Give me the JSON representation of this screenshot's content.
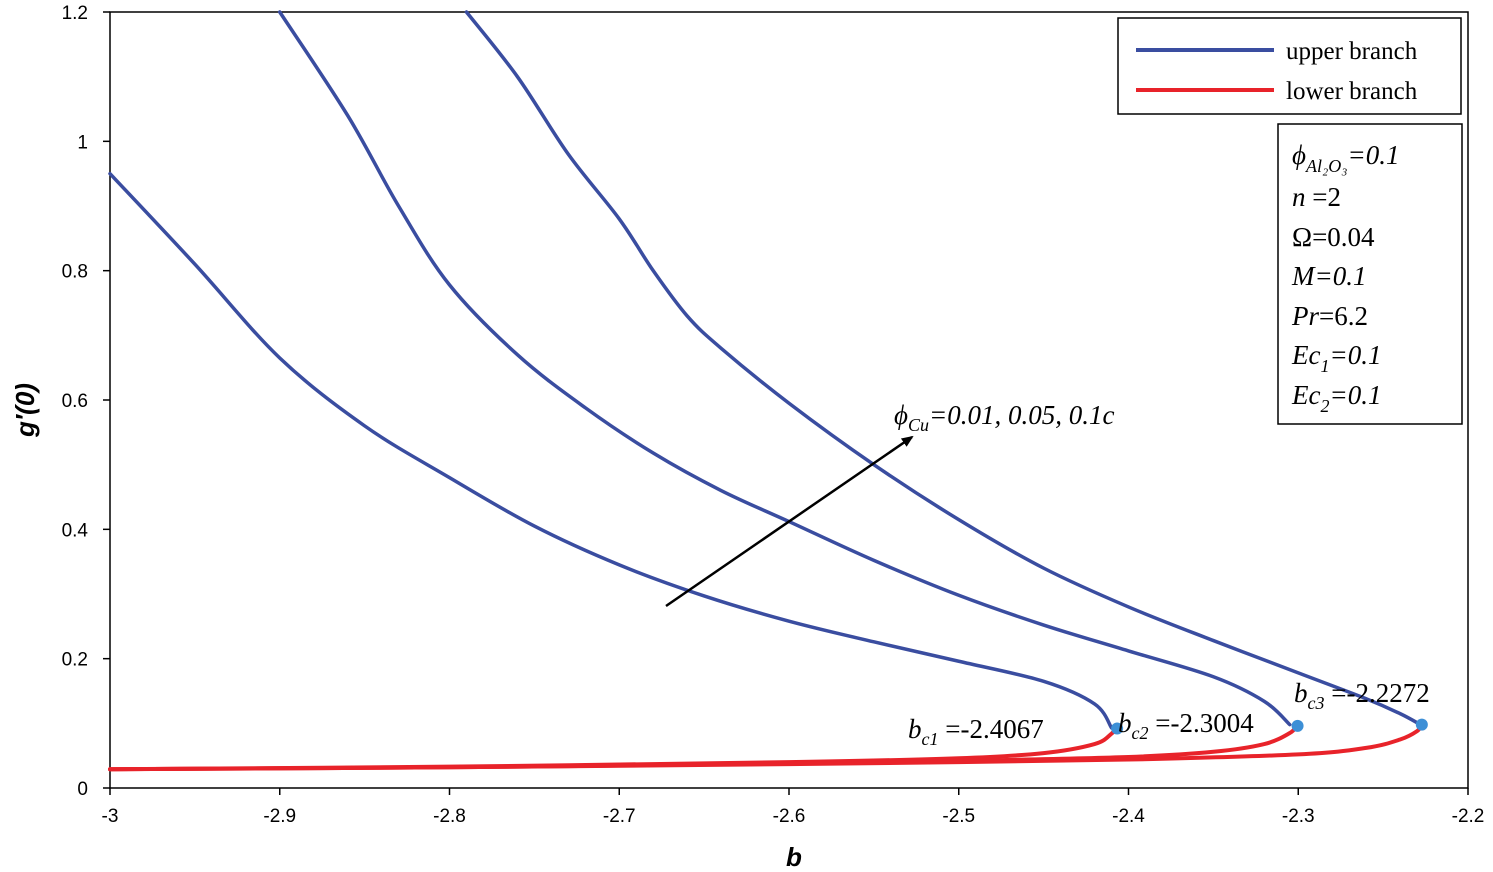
{
  "chart_data": {
    "type": "line",
    "xlabel": "b",
    "ylabel": "g′(0)",
    "xlim": [
      -3,
      -2.2
    ],
    "ylim": [
      0,
      1.2
    ],
    "x_ticks": [
      "-3",
      "-2.9",
      "-2.8",
      "-2.7",
      "-2.6",
      "-2.5",
      "-2.4",
      "-2.3",
      "-2.2"
    ],
    "y_ticks": [
      "0",
      "0.2",
      "0.4",
      "0.6",
      "0.8",
      "1",
      "1.2"
    ],
    "x_tick_values": [
      -3,
      -2.9,
      -2.8,
      -2.7,
      -2.6,
      -2.5,
      -2.4,
      -2.3,
      -2.2
    ],
    "y_tick_values": [
      0,
      0.2,
      0.4,
      0.6,
      0.8,
      1.0,
      1.2
    ],
    "legend": {
      "placement": "top-right",
      "entries": [
        {
          "label": "upper branch",
          "color": "#3a4da0"
        },
        {
          "label": "lower branch",
          "color": "#e8232a"
        }
      ]
    },
    "parameters": {
      "phi_al": {
        "symbol": "ϕ",
        "sub": "Al₂O₃",
        "value": "=0.1"
      },
      "n": {
        "symbol": "n",
        "value": " =2"
      },
      "omega": {
        "label": "Ω=0.04"
      },
      "m": {
        "symbol": "M",
        "value": "=0.1"
      },
      "pr": {
        "symbol": "Pr",
        "value": "=6.2"
      },
      "ec1": {
        "symbol": "Ec",
        "sub": "1",
        "value": "=0.1"
      },
      "ec2": {
        "symbol": "Ec",
        "sub": "2",
        "value": "=0.1"
      }
    },
    "arrow_annotation": {
      "symbol": "ϕ",
      "sub": "Cu",
      "value": "=0.01, 0.05, 0.1c"
    },
    "critical_points": [
      {
        "name": "b",
        "sub": "c1",
        "value": " =-2.4067",
        "x": -2.4067,
        "y": 0.092
      },
      {
        "name": "b",
        "sub": "c2",
        "value": " =-2.3004",
        "x": -2.3004,
        "y": 0.096
      },
      {
        "name": "b",
        "sub": "c3",
        "value": " =-2.2272",
        "x": -2.2272,
        "y": 0.098
      }
    ],
    "series": [
      {
        "name": "upper branch (phi_Cu=0.01)",
        "branch": "upper",
        "x": [
          -3.0,
          -2.95,
          -2.9,
          -2.85,
          -2.8,
          -2.75,
          -2.7,
          -2.65,
          -2.6,
          -2.55,
          -2.5,
          -2.45,
          -2.42,
          -2.41
        ],
        "y": [
          0.95,
          0.81,
          0.665,
          0.56,
          0.48,
          0.405,
          0.345,
          0.297,
          0.258,
          0.226,
          0.196,
          0.165,
          0.13,
          0.093
        ]
      },
      {
        "name": "upper branch (phi_Cu=0.05)",
        "branch": "upper",
        "x": [
          -2.9,
          -2.86,
          -2.83,
          -2.8,
          -2.76,
          -2.72,
          -2.68,
          -2.64,
          -2.6,
          -2.55,
          -2.5,
          -2.45,
          -2.4,
          -2.35,
          -2.32,
          -2.305
        ],
        "y": [
          1.2,
          1.04,
          0.9,
          0.778,
          0.67,
          0.588,
          0.518,
          0.46,
          0.412,
          0.352,
          0.298,
          0.252,
          0.212,
          0.172,
          0.134,
          0.098
        ]
      },
      {
        "name": "upper branch (phi_Cu=0.1)",
        "branch": "upper",
        "x": [
          -2.79,
          -2.76,
          -2.73,
          -2.7,
          -2.68,
          -2.66,
          -2.64,
          -2.6,
          -2.55,
          -2.5,
          -2.45,
          -2.4,
          -2.35,
          -2.3,
          -2.26,
          -2.24,
          -2.228
        ],
        "y": [
          1.2,
          1.1,
          0.98,
          0.88,
          0.8,
          0.73,
          0.68,
          0.595,
          0.5,
          0.415,
          0.34,
          0.28,
          0.228,
          0.178,
          0.138,
          0.115,
          0.098
        ]
      },
      {
        "name": "lower branch (phi_Cu=0.01)",
        "branch": "lower",
        "x": [
          -3.0,
          -2.8,
          -2.6,
          -2.5,
          -2.45,
          -2.42,
          -2.41,
          -2.408
        ],
        "y": [
          0.029,
          0.033,
          0.04,
          0.046,
          0.054,
          0.068,
          0.084,
          0.092
        ]
      },
      {
        "name": "lower branch (phi_Cu=0.05)",
        "branch": "lower",
        "x": [
          -3.0,
          -2.8,
          -2.6,
          -2.5,
          -2.4,
          -2.35,
          -2.32,
          -2.305,
          -2.301
        ],
        "y": [
          0.029,
          0.032,
          0.038,
          0.042,
          0.048,
          0.056,
          0.068,
          0.085,
          0.096
        ]
      },
      {
        "name": "lower branch (phi_Cu=0.1)",
        "branch": "lower",
        "x": [
          -3.0,
          -2.8,
          -2.6,
          -2.5,
          -2.4,
          -2.3,
          -2.26,
          -2.24,
          -2.23,
          -2.2272
        ],
        "y": [
          0.029,
          0.032,
          0.037,
          0.04,
          0.044,
          0.052,
          0.062,
          0.075,
          0.088,
          0.098
        ]
      }
    ],
    "colors": {
      "upper": "#3a4da0",
      "lower": "#e8232a",
      "point": "#3d8fd6",
      "arrow": "#000000"
    }
  }
}
